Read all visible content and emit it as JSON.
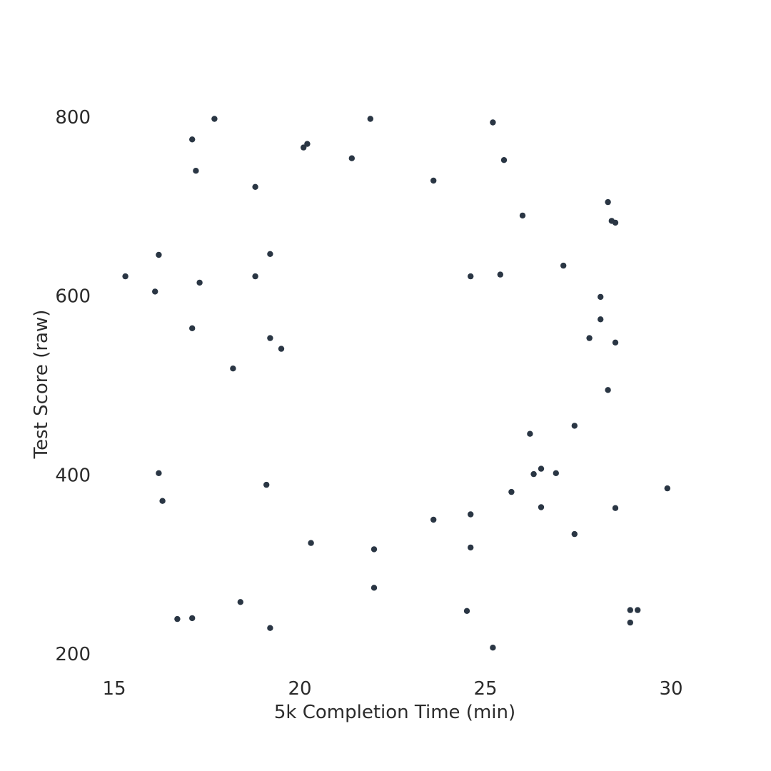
{
  "chart_data": {
    "type": "scatter",
    "title": "",
    "xlabel": "5k Completion Time (min)",
    "ylabel": "Test Score (raw)",
    "xlim": [
      14.9,
      32.1
    ],
    "ylim": [
      195,
      805
    ],
    "xticks": [
      15,
      20,
      25,
      30
    ],
    "yticks": [
      200,
      400,
      600,
      800
    ],
    "grid": false,
    "legend": "none",
    "point_color": "#2a3644",
    "x": [
      15.3,
      16.1,
      16.2,
      16.2,
      16.3,
      16.7,
      17.1,
      17.1,
      17.1,
      17.2,
      17.3,
      17.7,
      18.2,
      18.4,
      18.8,
      18.8,
      19.1,
      19.2,
      19.2,
      19.2,
      19.5,
      20.1,
      20.2,
      20.3,
      21.4,
      21.9,
      22.0,
      22.0,
      23.6,
      23.6,
      24.5,
      24.6,
      24.6,
      24.6,
      25.2,
      25.2,
      25.4,
      25.5,
      25.7,
      26.0,
      26.2,
      26.3,
      26.5,
      26.5,
      26.9,
      27.1,
      27.4,
      27.4,
      27.8,
      28.1,
      28.1,
      28.3,
      28.3,
      28.4,
      28.5,
      28.5,
      28.5,
      28.9,
      28.9,
      29.1,
      29.9
    ],
    "y": [
      622,
      605,
      646,
      402,
      371,
      239,
      775,
      564,
      240,
      740,
      615,
      798,
      519,
      258,
      722,
      622,
      389,
      553,
      647,
      229,
      541,
      766,
      770,
      324,
      754,
      798,
      317,
      274,
      729,
      350,
      248,
      622,
      356,
      319,
      794,
      207,
      624,
      752,
      381,
      690,
      446,
      401,
      407,
      364,
      402,
      634,
      455,
      334,
      553,
      599,
      574,
      705,
      495,
      684,
      682,
      363,
      548,
      235,
      249,
      249,
      385
    ]
  }
}
